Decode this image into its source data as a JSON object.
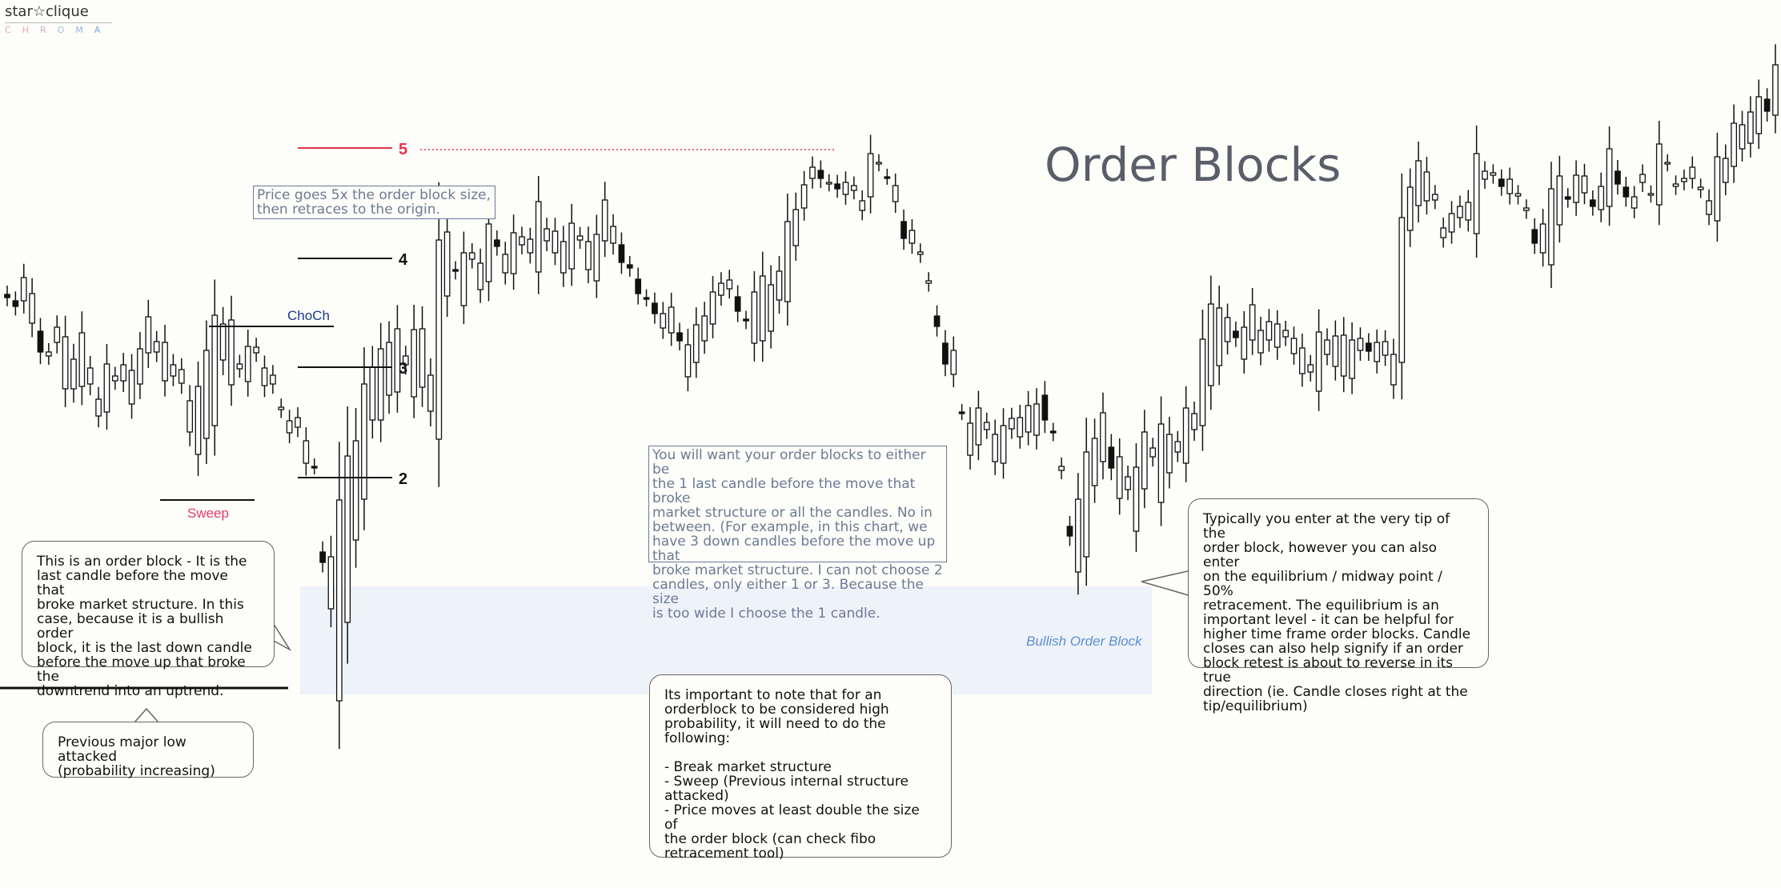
{
  "logo": {
    "text": "star☆clique",
    "sub": "CHROMA"
  },
  "chart_data": {
    "type": "candlestick",
    "title": "Order Blocks",
    "ylabel": "",
    "xlabel": "",
    "grid": false,
    "ohlc": [
      [
        368,
        376,
        280,
        372
      ],
      [
        376,
        382,
        300,
        383
      ],
      [
        376,
        450,
        405,
        347
      ],
      [
        404,
        414,
        448,
        367
      ],
      [
        414,
        445,
        407,
        440
      ],
      [
        445,
        460,
        428,
        440
      ],
      [
        428,
        476,
        466,
        409
      ],
      [
        486,
        486,
        500,
        421
      ],
      [
        486,
        527,
        510,
        449
      ],
      [
        483,
        510,
        484,
        416
      ],
      [
        480,
        498,
        484,
        460
      ],
      [
        520,
        520,
        570,
        499
      ],
      [
        515,
        505,
        520,
        455
      ],
      [
        476,
        486,
        475,
        470
      ],
      [
        476,
        541,
        505,
        456
      ],
      [
        505,
        486,
        480,
        463
      ],
      [
        480,
        441,
        460,
        436
      ],
      [
        441,
        440,
        448,
        396
      ],
      [
        440,
        432,
        476,
        427
      ],
      [
        476,
        470,
        478,
        428
      ],
      [
        470,
        479,
        486,
        456
      ],
      [
        479,
        553,
        540,
        462
      ],
      [
        540,
        540,
        568,
        501
      ],
      [
        568,
        543,
        555,
        483
      ],
      [
        548,
        550,
        532,
        438
      ],
      [
        532,
        447,
        467,
        394
      ],
      [
        450,
        490,
        481,
        405
      ],
      [
        481,
        461,
        491,
        400
      ],
      [
        461,
        477,
        494,
        455
      ],
      [
        477,
        441,
        506,
        433
      ],
      [
        441,
        482,
        510,
        434
      ],
      [
        482,
        480,
        505,
        460
      ],
      [
        480,
        512,
        534,
        469
      ],
      [
        512,
        541,
        572,
        509
      ],
      [
        541,
        541,
        534,
        526
      ],
      [
        534,
        579,
        584,
        522
      ],
      [
        579,
        583,
        654,
        551
      ],
      [
        583,
        690,
        728,
        583
      ],
      [
        690,
        761,
        880,
        703
      ],
      [
        761,
        876,
        908,
        696
      ],
      [
        876,
        778,
        908,
        625
      ],
      [
        778,
        675,
        681,
        570
      ],
      [
        675,
        624,
        632,
        551
      ],
      [
        624,
        525,
        590,
        480
      ],
      [
        525,
        525,
        508,
        459
      ],
      [
        525,
        494,
        497,
        436
      ],
      [
        494,
        490,
        493,
        428
      ],
      [
        490,
        456,
        507,
        411
      ],
      [
        456,
        496,
        493,
        445
      ],
      [
        496,
        484,
        477,
        412
      ],
      [
        484,
        514,
        456,
        411
      ],
      [
        514,
        549,
        566,
        469
      ],
      [
        549,
        370,
        378,
        300
      ],
      [
        370,
        337,
        332,
        290
      ],
      [
        337,
        382,
        377,
        339
      ],
      [
        382,
        324,
        312,
        316
      ],
      [
        324,
        362,
        367,
        316
      ],
      [
        362,
        352,
        353,
        329
      ],
      [
        352,
        300,
        294,
        280
      ],
      [
        300,
        341,
        345,
        308
      ],
      [
        341,
        342,
        357,
        318
      ],
      [
        342,
        306,
        312,
        291
      ],
      [
        306,
        316,
        337,
        296
      ],
      [
        316,
        340,
        340,
        299
      ],
      [
        340,
        301,
        300,
        252
      ],
      [
        301,
        316,
        337,
        286
      ],
      [
        316,
        341,
        364,
        289
      ],
      [
        341,
        336,
        337,
        302
      ],
      [
        336,
        300,
        300,
        279
      ],
      [
        300,
        337,
        348,
        295
      ],
      [
        337,
        351,
        353,
        302
      ],
      [
        351,
        301,
        298,
        293
      ],
      [
        301,
        304,
        304,
        250
      ],
      [
        304,
        306,
        338,
        283
      ],
      [
        306,
        331,
        378,
        328
      ],
      [
        331,
        349,
        408,
        335
      ],
      [
        349,
        372,
        413,
        367
      ],
      [
        372,
        379,
        441,
        373
      ],
      [
        379,
        410,
        442,
        392
      ],
      [
        410,
        416,
        439,
        392
      ],
      [
        416,
        416,
        429,
        384
      ],
      [
        416,
        471,
        487,
        426
      ],
      [
        471,
        453,
        452,
        431
      ],
      [
        453,
        426,
        442,
        406
      ],
      [
        426,
        405,
        443,
        395
      ],
      [
        405,
        369,
        383,
        365
      ],
      [
        369,
        361,
        375,
        354
      ],
      [
        361,
        371,
        389,
        350
      ],
      [
        371,
        399,
        404,
        389
      ],
      [
        399,
        429,
        449,
        401
      ],
      [
        429,
        426,
        435,
        365
      ],
      [
        426,
        414,
        423,
        345
      ],
      [
        414,
        375,
        381,
        356
      ],
      [
        375,
        377,
        350,
        339
      ],
      [
        377,
        307,
        296,
        277
      ],
      [
        307,
        260,
        248,
        262
      ],
      [
        260,
        223,
        226,
        231
      ],
      [
        223,
        213,
        219,
        209
      ],
      [
        213,
        229,
        241,
        223
      ],
      [
        229,
        230,
        246,
        228
      ],
      [
        230,
        243,
        245,
        236
      ],
      [
        243,
        238,
        226,
        228
      ],
      [
        238,
        263,
        265,
        232
      ],
      [
        263,
        246,
        244,
        251
      ],
      [
        246,
        204,
        201,
        192
      ],
      [
        204,
        221,
        224,
        203
      ],
      [
        221,
        252,
        265,
        221
      ],
      [
        252,
        277,
        279,
        232
      ],
      [
        277,
        304,
        315,
        298
      ],
      [
        304,
        318,
        337,
        288
      ],
      [
        318,
        354,
        347,
        315
      ],
      [
        354,
        395,
        397,
        351
      ],
      [
        395,
        429,
        452,
        408
      ],
      [
        429,
        468,
        499,
        455
      ],
      [
        468,
        515,
        514,
        438
      ],
      [
        515,
        569,
        580,
        515
      ],
      [
        569,
        556,
        575,
        529
      ],
      [
        556,
        537,
        545,
        510
      ],
      [
        537,
        577,
        597,
        528
      ],
      [
        577,
        579,
        583,
        543
      ],
      [
        579,
        536,
        542,
        532
      ],
      [
        536,
        546,
        590,
        523
      ],
      [
        546,
        540,
        535,
        522
      ],
      [
        540,
        544,
        538,
        507
      ],
      [
        544,
        494,
        491,
        505
      ],
      [
        494,
        539,
        602,
        525
      ],
      [
        539,
        588,
        634,
        541
      ],
      [
        588,
        658,
        700,
        583
      ],
      [
        658,
        715,
        723,
        670
      ],
      [
        715,
        696,
        701,
        624
      ],
      [
        696,
        607,
        602,
        565
      ],
      [
        607,
        577,
        582,
        548
      ],
      [
        577,
        559,
        574,
        516
      ],
      [
        559,
        623,
        643,
        585
      ],
      [
        623,
        612,
        619,
        571
      ],
      [
        612,
        664,
        670,
        596
      ],
      [
        664,
        611,
        604,
        584
      ],
      [
        611,
        571,
        566,
        540
      ],
      [
        571,
        628,
        631,
        560
      ],
      [
        628,
        591,
        589,
        530
      ],
      [
        591,
        565,
        571,
        543
      ],
      [
        565,
        579,
        572,
        552
      ],
      [
        579,
        537,
        546,
        510
      ],
      [
        537,
        532,
        526,
        517
      ],
      [
        532,
        482,
        485,
        424
      ],
      [
        482,
        457,
        450,
        380
      ],
      [
        457,
        427,
        431,
        385
      ],
      [
        427,
        414,
        423,
        397
      ],
      [
        414,
        449,
        466,
        422
      ],
      [
        449,
        425,
        418,
        409
      ],
      [
        425,
        441,
        450,
        381
      ],
      [
        441,
        425,
        424,
        413
      ],
      [
        425,
        434,
        437,
        402
      ],
      [
        434,
        421,
        450,
        405
      ],
      [
        421,
        442,
        457,
        413
      ],
      [
        442,
        467,
        470,
        423
      ],
      [
        467,
        465,
        468,
        435
      ],
      [
        465,
        489,
        528,
        456
      ],
      [
        489,
        443,
        449,
        415
      ],
      [
        443,
        458,
        469,
        425
      ],
      [
        458,
        470,
        469,
        420
      ],
      [
        470,
        473,
        475,
        419
      ],
      [
        473,
        438,
        470,
        425
      ],
      [
        438,
        429,
        427,
        423
      ],
      [
        429,
        452,
        471,
        439
      ],
      [
        452,
        444,
        476,
        428
      ],
      [
        444,
        481,
        499,
        427
      ],
      [
        481,
        453,
        455,
        443
      ],
      [
        453,
        288,
        287,
        272
      ],
      [
        288,
        257,
        255,
        234
      ],
      [
        257,
        251,
        253,
        201
      ],
      [
        251,
        250,
        295,
        215
      ],
      [
        250,
        297,
        310,
        243
      ],
      [
        297,
        290,
        291,
        285
      ],
      [
        290,
        272,
        277,
        267
      ],
      [
        272,
        275,
        286,
        258
      ],
      [
        275,
        292,
        298,
        253
      ],
      [
        292,
        224,
        233,
        192
      ],
      [
        224,
        219,
        213,
        214
      ],
      [
        219,
        224,
        245,
        216
      ],
      [
        224,
        242,
        267,
        233
      ],
      [
        242,
        245,
        238,
        224
      ],
      [
        245,
        263,
        316,
        242
      ],
      [
        263,
        287,
        301,
        260
      ],
      [
        287,
        316,
        331,
        304
      ],
      [
        316,
        331,
        324,
        280
      ],
      [
        331,
        281,
        304,
        236
      ],
      [
        281,
        246,
        249,
        220
      ],
      [
        246,
        253,
        271,
        249
      ],
      [
        253,
        241,
        227,
        219
      ],
      [
        241,
        250,
        283,
        220
      ],
      [
        250,
        262,
        288,
        258
      ],
      [
        262,
        258,
        273,
        233
      ],
      [
        258,
        214,
        227,
        186
      ],
      [
        214,
        234,
        264,
        230
      ],
      [
        234,
        260,
        272,
        246
      ],
      [
        260,
        228,
        277,
        246
      ],
      [
        228,
        243,
        268,
        218
      ],
      [
        243,
        256,
        297,
        242
      ],
      [
        256,
        204,
        218,
        180
      ],
      [
        204,
        233,
        259,
        203
      ],
      [
        233,
        227,
        227,
        230
      ],
      [
        227,
        223,
        260,
        223
      ],
      [
        223,
        237,
        236,
        209
      ],
      [
        237,
        268,
        316,
        234
      ],
      [
        268,
        276,
        295,
        251
      ],
      [
        276,
        228,
        247,
        196
      ],
      [
        228,
        208,
        219,
        198
      ],
      [
        208,
        186,
        187,
        154
      ],
      [
        186,
        179,
        188,
        156
      ],
      [
        179,
        167,
        191,
        140
      ],
      [
        167,
        124,
        126,
        121
      ],
      [
        124,
        144,
        154,
        139
      ],
      [
        144,
        93,
        97,
        81
      ]
    ]
  },
  "annotations": {
    "level5": "5",
    "level4": "4",
    "level3": "3",
    "level2": "2",
    "choch": "ChoCh",
    "sweep": "Sweep",
    "ob_zone": "Bullish Order Block",
    "note_price": "Price goes 5x the order block size,\nthen retraces to the origin.",
    "note_choose": "You will want your order blocks to either be\nthe 1 last candle before the move that broke\nmarket structure or all the candles. No in\nbetween. (For example, in this chart, we\nhave 3 down candles before the move up that\nbroke market structure. I can not choose 2\ncandles, only either 1 or 3. Because the size\nis too wide I choose the 1 candle.",
    "callout_ob": "This is an order block - It is the\nlast candle before the move that\nbroke market structure. In this\ncase, because it is a bullish order\nblock, it is the last down candle\nbefore the move up that broke the\ndowntrend into an uptrend.",
    "callout_low": "Previous major low attacked\n(probability increasing)",
    "callout_entry": "Typically you enter at the very tip of the\norder block, however you can also enter\non the equilibrium / midway point / 50%\nretracement. The equilibrium is an\nimportant level - it can be helpful for\nhigher time frame order blocks. Candle\ncloses can also help signify if an order\nblock retest is about to reverse in its true\ndirection (ie. Candle closes right at the\ntip/equilibrium)",
    "callout_prob": "Its important to note that for an\norderblock to be considered high\nprobability, it will need to do the\nfollowing:\n\n- Break market structure\n- Sweep (Previous internal structure\nattacked)\n- Price moves at least double the size of\nthe order block (can check fibo\nretracement tool)"
  },
  "colors": {
    "choch": "#1b3a8f",
    "sweep": "#e23d6f",
    "level5": "#e4344c",
    "ob_zone_fill": "#eef2f9",
    "ob_label": "#5d8fd6",
    "note_text": "#6b7b93",
    "title": "#595e69"
  }
}
